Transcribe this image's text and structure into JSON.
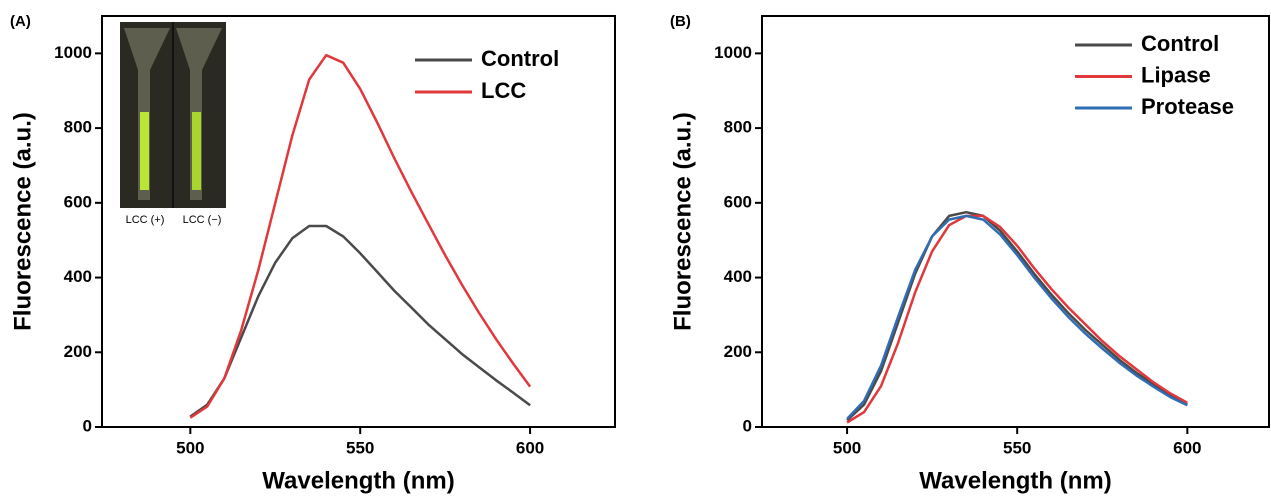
{
  "chart_data": [
    {
      "type": "line",
      "panel_label": "(A)",
      "xlabel": "Wavelength (nm)",
      "ylabel": "Fluorescence (a.u.)",
      "x": [
        500,
        505,
        510,
        515,
        520,
        525,
        530,
        535,
        540,
        545,
        550,
        555,
        560,
        565,
        570,
        575,
        580,
        585,
        590,
        595,
        600
      ],
      "series": [
        {
          "name": "Control",
          "color": "#4a4a4a",
          "values": [
            28,
            60,
            130,
            240,
            350,
            440,
            505,
            538,
            538,
            510,
            465,
            415,
            365,
            320,
            275,
            235,
            195,
            160,
            125,
            92,
            58
          ]
        },
        {
          "name": "LCC",
          "color": "#e0383b",
          "values": [
            25,
            55,
            130,
            260,
            420,
            600,
            780,
            930,
            995,
            975,
            905,
            815,
            720,
            630,
            545,
            460,
            380,
            305,
            235,
            170,
            108
          ]
        }
      ],
      "xlim": [
        474,
        625
      ],
      "xticks": [
        500,
        550,
        600
      ],
      "ylim": [
        0,
        1100
      ],
      "yticks": [
        0,
        200,
        400,
        600,
        800,
        1000
      ],
      "inset_labels": [
        "LCC (+)",
        "LCC (−)"
      ]
    },
    {
      "type": "line",
      "panel_label": "(B)",
      "xlabel": "Wavelength (nm)",
      "ylabel": "Fluorescence (a.u.)",
      "x": [
        500,
        505,
        510,
        515,
        520,
        525,
        530,
        535,
        540,
        545,
        550,
        555,
        560,
        565,
        570,
        575,
        580,
        585,
        590,
        595,
        600
      ],
      "series": [
        {
          "name": "Control",
          "color": "#4a4a4a",
          "values": [
            18,
            60,
            150,
            280,
            410,
            510,
            565,
            575,
            565,
            525,
            470,
            410,
            355,
            305,
            260,
            220,
            180,
            145,
            115,
            85,
            60
          ]
        },
        {
          "name": "Lipase",
          "color": "#e0383b",
          "values": [
            12,
            40,
            110,
            225,
            360,
            470,
            540,
            565,
            565,
            535,
            485,
            425,
            370,
            320,
            275,
            230,
            190,
            155,
            120,
            90,
            65
          ]
        },
        {
          "name": "Protease",
          "color": "#2f6db5",
          "values": [
            22,
            70,
            165,
            295,
            420,
            510,
            555,
            565,
            555,
            515,
            460,
            400,
            345,
            295,
            250,
            210,
            172,
            138,
            108,
            80,
            58
          ]
        }
      ],
      "xlim": [
        475,
        624
      ],
      "xticks": [
        500,
        550,
        600
      ],
      "ylim": [
        0,
        1100
      ],
      "yticks": [
        0,
        200,
        400,
        600,
        800,
        1000
      ]
    }
  ]
}
